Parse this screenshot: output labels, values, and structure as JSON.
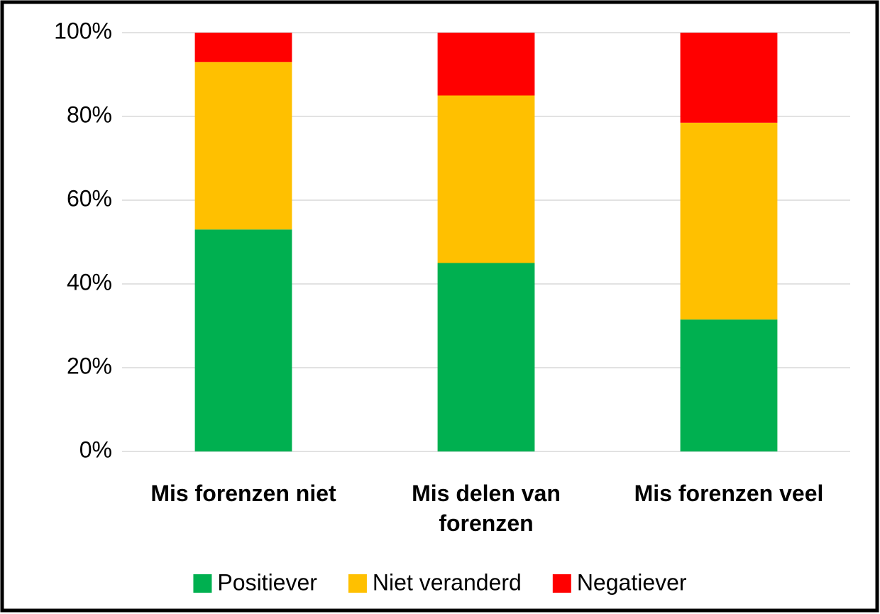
{
  "chart_data": {
    "type": "stacked_bar",
    "categories": [
      "Mis forenzen niet",
      "Mis delen van forenzen",
      "Mis forenzen veel"
    ],
    "series": [
      {
        "name": "Positiever",
        "color": "#00b050",
        "values": [
          53,
          45,
          31.5
        ]
      },
      {
        "name": "Niet veranderd",
        "color": "#ffc000",
        "values": [
          40,
          40,
          47
        ]
      },
      {
        "name": "Negatiever",
        "color": "#ff0000",
        "values": [
          7,
          15,
          21.5
        ]
      }
    ],
    "ylim": [
      0,
      100
    ],
    "yticks": [
      {
        "value": 0,
        "label": "0%"
      },
      {
        "value": 20,
        "label": "20%"
      },
      {
        "value": 40,
        "label": "40%"
      },
      {
        "value": 60,
        "label": "60%"
      },
      {
        "value": 80,
        "label": "80%"
      },
      {
        "value": 100,
        "label": "100%"
      }
    ],
    "grid": true,
    "legend": "bottom"
  }
}
